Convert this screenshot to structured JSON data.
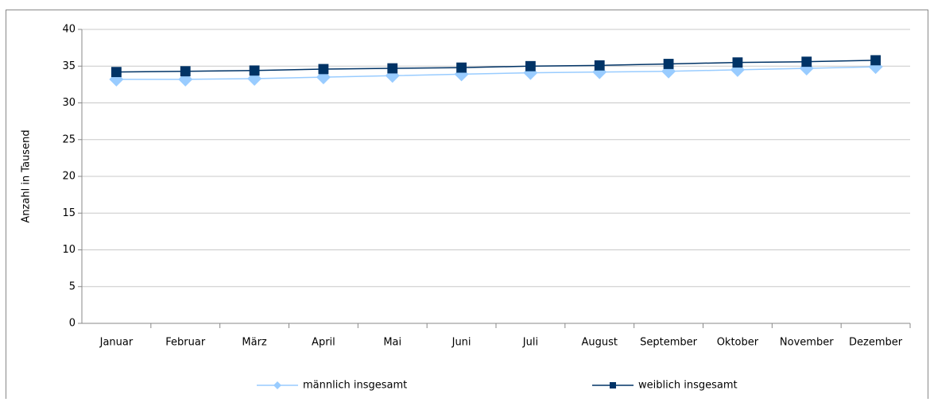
{
  "chart_data": {
    "type": "line",
    "y_label": "Anzahl in Tausend",
    "categories": [
      "Januar",
      "Februar",
      "März",
      "April",
      "Mai",
      "Juni",
      "Juli",
      "August",
      "September",
      "Oktober",
      "November",
      "Dezember"
    ],
    "series": [
      {
        "name": "männlich insgesamt",
        "color": "#99ccff",
        "marker": "diamond",
        "values": [
          33.2,
          33.2,
          33.3,
          33.5,
          33.7,
          33.9,
          34.1,
          34.2,
          34.3,
          34.5,
          34.7,
          34.9
        ]
      },
      {
        "name": "weiblich insgesamt",
        "color": "#003366",
        "marker": "square",
        "values": [
          34.2,
          34.3,
          34.4,
          34.6,
          34.7,
          34.8,
          35.0,
          35.1,
          35.3,
          35.5,
          35.6,
          35.8
        ]
      }
    ],
    "ylim": [
      0,
      40
    ],
    "yticks": [
      0,
      5,
      10,
      15,
      20,
      25,
      30,
      35,
      40
    ],
    "grid": true
  }
}
